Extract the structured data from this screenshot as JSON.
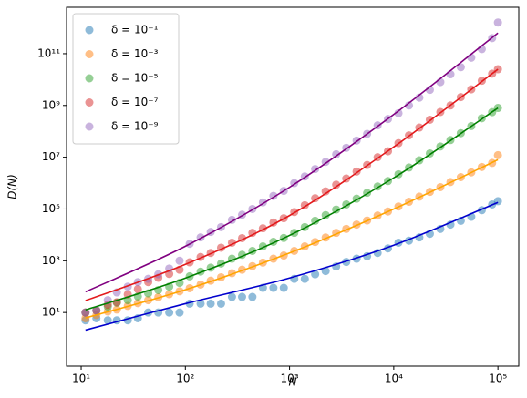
{
  "chart_data": {
    "type": "scatter",
    "xlabel": "N",
    "ylabel": "D(N)",
    "xscale": "log",
    "yscale": "log",
    "xlim": [
      7.24,
      158489
    ],
    "ylim": [
      0.085,
      6200000000000.0
    ],
    "xticks": [
      {
        "value": 10,
        "label": "10¹"
      },
      {
        "value": 100,
        "label": "10²"
      },
      {
        "value": 1000,
        "label": "10³"
      },
      {
        "value": 10000,
        "label": "10⁴"
      },
      {
        "value": 100000,
        "label": "10⁵"
      }
    ],
    "yticks": [
      {
        "value": 10,
        "label": "10¹"
      },
      {
        "value": 1000,
        "label": "10³"
      },
      {
        "value": 100000,
        "label": "10⁵"
      },
      {
        "value": 10000000,
        "label": "10⁷"
      },
      {
        "value": 1000000000,
        "label": "10⁹"
      },
      {
        "value": 100000000000,
        "label": "10¹¹"
      }
    ],
    "legend": "upper left",
    "x": [
      11,
      14,
      18,
      22,
      28,
      35,
      44,
      55,
      70,
      88,
      110,
      140,
      175,
      220,
      280,
      350,
      440,
      555,
      700,
      880,
      1110,
      1400,
      1760,
      2220,
      2800,
      3500,
      4400,
      5550,
      7000,
      8800,
      11100,
      14000,
      17600,
      22200,
      28000,
      35000,
      44000,
      55500,
      70000,
      88000,
      100000
    ],
    "series": [
      {
        "name": "δ = 10⁻¹",
        "color": "#1f77b4",
        "values": [
          5,
          6,
          5,
          5,
          5,
          6,
          10,
          10,
          10,
          10,
          22,
          22,
          22,
          22,
          40,
          40,
          40,
          90,
          90,
          90,
          200,
          200,
          300,
          400,
          600,
          900,
          1200,
          1500,
          2000,
          3000,
          5000,
          6000,
          8000,
          11000,
          17000,
          25000,
          35000,
          50000,
          90000,
          150000,
          200000
        ]
      },
      {
        "name": "δ = 10⁻³",
        "color": "#ff7f0e",
        "values": [
          6,
          8,
          11,
          13,
          18,
          23,
          30,
          39,
          51,
          66,
          87,
          120,
          170,
          230,
          330,
          450,
          620,
          850,
          1200,
          1600,
          2400,
          3600,
          5300,
          7900,
          12000,
          17000,
          25000,
          36000,
          56000,
          80000,
          125000,
          190000,
          300000,
          460000,
          700000,
          1100000,
          1700000,
          2600000,
          4200000,
          6000000,
          12000000
        ]
      },
      {
        "name": "δ = 10⁻⁵",
        "color": "#2ca02c",
        "values": [
          10,
          12,
          17,
          24,
          30,
          42,
          55,
          74,
          100,
          140,
          250,
          380,
          540,
          780,
          1200,
          1700,
          2400,
          3600,
          5400,
          7600,
          12000,
          20000,
          35000,
          58000,
          95000,
          150000,
          250000,
          420000,
          740000,
          1200000,
          2200000,
          4000000,
          7600000,
          14000000,
          26000000,
          46000000,
          85000000,
          160000000,
          320000000,
          550000000,
          800000000
        ]
      },
      {
        "name": "δ = 10⁻⁷",
        "color": "#d62728",
        "values": [
          10,
          12,
          20,
          25,
          50,
          80,
          150,
          220,
          310,
          450,
          870,
          1400,
          2000,
          3200,
          5000,
          7500,
          12000,
          18000,
          30000,
          44000,
          76000,
          140000,
          260000,
          480000,
          870000,
          1500000,
          2800000,
          5000000,
          10000000,
          17000000,
          35000000,
          70000000,
          140000000,
          280000000,
          560000000,
          1000000000,
          2100000000,
          4200000000,
          9000000000,
          17000000000,
          25000000000
        ]
      },
      {
        "name": "δ = 10⁻⁹",
        "color": "#9467bd",
        "values": [
          10,
          12,
          30,
          60,
          100,
          150,
          200,
          300,
          500,
          1000,
          4500,
          8000,
          13000,
          20000,
          38000,
          60000,
          100000,
          180000,
          320000,
          500000,
          1000000,
          1800000,
          3500000,
          6600000,
          13000000,
          23000000,
          44000000,
          80000000,
          170000000,
          300000000,
          500000000,
          1000000000,
          2000000000,
          4000000000,
          8000000000,
          16000000000,
          30000000000,
          70000000000,
          150000000000,
          400000000000,
          1600000000000
        ]
      }
    ],
    "line_x": [
      11,
      100,
      1000,
      10000,
      100000
    ],
    "lines": [
      {
        "color": "#0000cd",
        "values": [
          2.1,
          22,
          215,
          4000,
          180000
        ]
      },
      {
        "color": "#ffa500",
        "values": [
          6.2,
          76,
          2000,
          100000,
          8000000
        ]
      },
      {
        "color": "#008000",
        "values": [
          12.6,
          214,
          9550,
          1600000,
          800000000
        ]
      },
      {
        "color": "#e31a1c",
        "values": [
          29,
          724,
          56000,
          25000000,
          25000000000
        ]
      },
      {
        "color": "#800080",
        "values": [
          63,
          3630,
          690000,
          450000000,
          630000000000
        ]
      }
    ]
  }
}
